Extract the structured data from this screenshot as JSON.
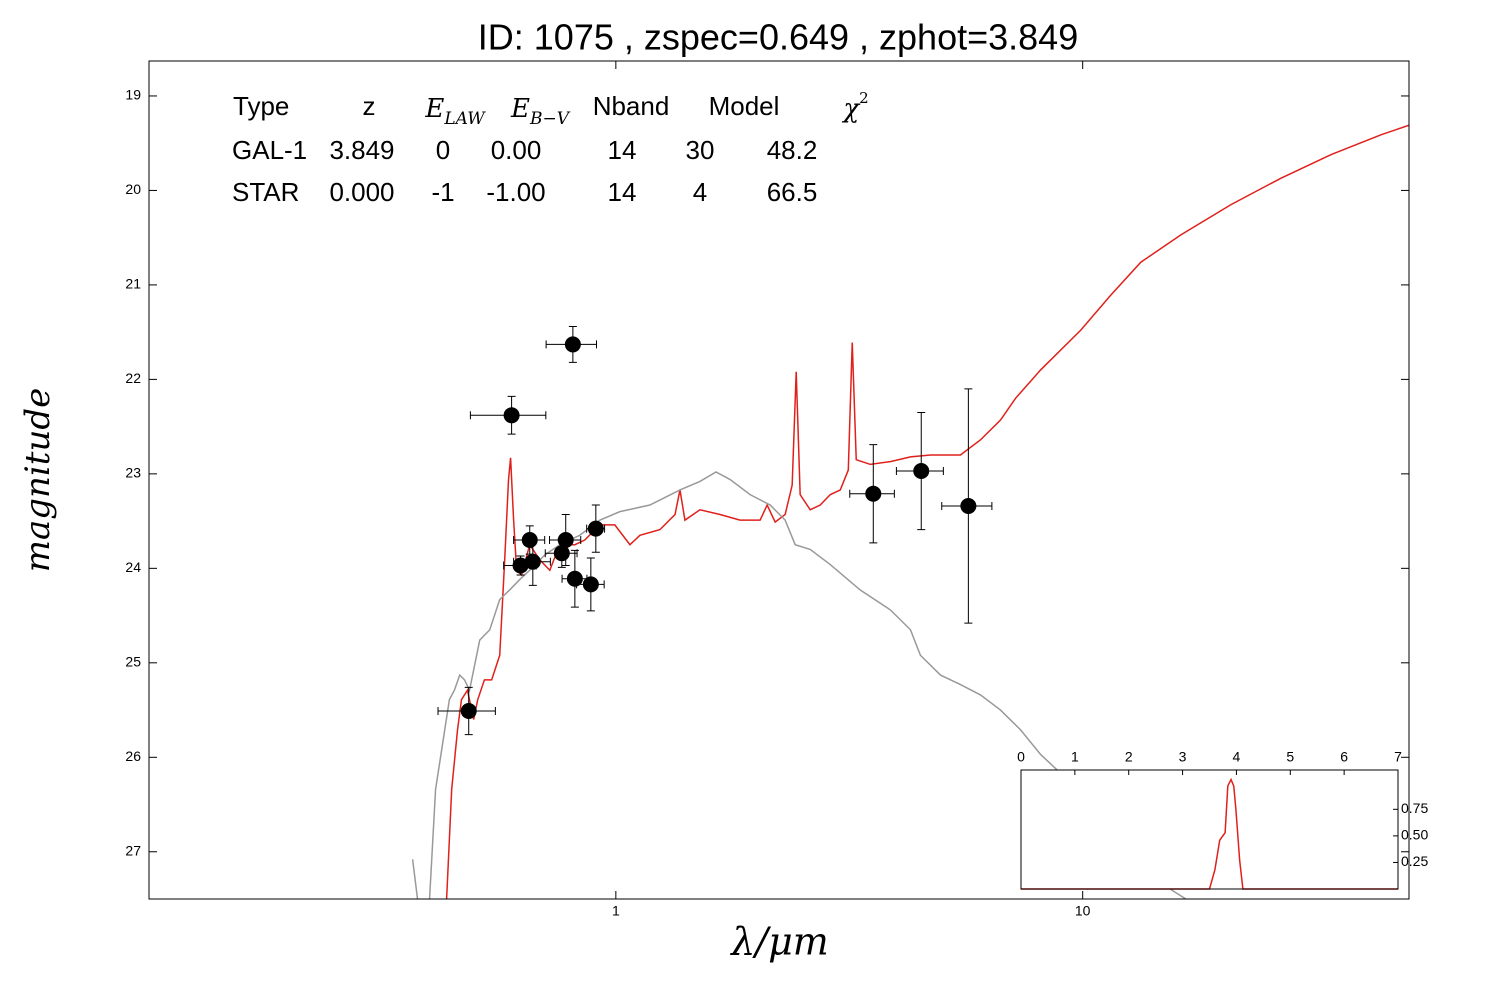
{
  "chart_data": [
    {
      "type": "scatter",
      "title": "ID:  1075  , zspec=0.649 , zphot=3.849",
      "xlabel": "λ/μm",
      "ylabel": "magnitude",
      "xscale": "log",
      "xlim": [
        0.1,
        50
      ],
      "ylim": [
        27.5,
        18.63
      ],
      "xticks": [
        1,
        10
      ],
      "yticks": [
        19,
        20,
        21,
        22,
        23,
        24,
        25,
        26,
        27
      ],
      "points": {
        "color": "#000000",
        "x": [
          0.484,
          0.598,
          0.809,
          0.625,
          0.654,
          0.664,
          0.766,
          0.781,
          0.817,
          0.884,
          0.906,
          3.56,
          4.51,
          5.69
        ],
        "y": [
          25.51,
          22.38,
          21.63,
          23.97,
          23.7,
          23.93,
          23.84,
          23.7,
          24.11,
          24.17,
          23.58,
          23.21,
          22.97,
          23.34
        ],
        "xerr": [
          0.068,
          0.11,
          0.1,
          0.05,
          0.05,
          0.06,
          0.06,
          0.06,
          0.05,
          0.06,
          0.04,
          0.39,
          0.52,
          0.7
        ],
        "yerr": [
          0.25,
          0.2,
          0.19,
          0.1,
          0.15,
          0.25,
          0.15,
          0.27,
          0.3,
          0.28,
          0.25,
          0.52,
          0.62,
          1.24
        ]
      },
      "series": [
        {
          "color": "#e0201b",
          "x": [
            0.434,
            0.445,
            0.458,
            0.467,
            0.481,
            0.496,
            0.506,
            0.523,
            0.542,
            0.564,
            0.578,
            0.589,
            0.595,
            0.604,
            0.613,
            0.628,
            0.654,
            0.687,
            0.722,
            0.758,
            0.817,
            0.858,
            0.924,
            0.995,
            1.072,
            1.126,
            1.243,
            1.339,
            1.372,
            1.406,
            1.514,
            1.672,
            1.845,
            2.037,
            2.109,
            2.194,
            2.305,
            2.386,
            2.434,
            2.482,
            2.608,
            2.74,
            2.879,
            3.025,
            3.147,
            3.209,
            3.273,
            3.509,
            3.873,
            4.276,
            4.719,
            5.472,
            6.041,
            6.668,
            7.181,
            8.126,
            9.901,
            11.48,
            13.32,
            16.23,
            20.78,
            26.6,
            34.06,
            43.61,
            50
          ],
          "y": [
            27.5,
            26.34,
            25.71,
            25.39,
            25.29,
            25.6,
            25.39,
            25.18,
            25.18,
            24.92,
            23.91,
            23.06,
            22.83,
            23.49,
            24.02,
            24.07,
            23.75,
            23.91,
            24.02,
            23.75,
            23.75,
            23.7,
            23.54,
            23.54,
            23.75,
            23.65,
            23.59,
            23.43,
            23.17,
            23.49,
            23.38,
            23.43,
            23.49,
            23.49,
            23.33,
            23.51,
            23.43,
            23.12,
            21.92,
            23.22,
            23.38,
            23.33,
            23.22,
            23.17,
            22.96,
            21.61,
            22.85,
            22.9,
            22.87,
            22.82,
            22.8,
            22.8,
            22.64,
            22.43,
            22.2,
            21.9,
            21.48,
            21.11,
            20.76,
            20.47,
            20.15,
            19.87,
            19.62,
            19.41,
            19.31
          ]
        },
        {
          "color": "#999999",
          "x": [
            0.367,
            0.376,
            null,
            0.399,
            0.411,
            0.43,
            0.44,
            0.451,
            0.463,
            0.474,
            0.486,
            0.511,
            0.537,
            0.564,
            0.592,
            0.622,
            0.654,
            0.704,
            0.758,
            0.837,
            0.924,
            1.02,
            1.183,
            1.372,
            1.514,
            1.639,
            1.757,
            1.939,
            2.141,
            2.305,
            2.422,
            2.608,
            2.879,
            3.339,
            3.873,
            4.276,
            4.491,
            4.959,
            5.472,
            6.041,
            6.668,
            7.362,
            8.126,
            8.796,
            15.45,
            16.63
          ],
          "y": [
            27.08,
            27.5,
            null,
            27.5,
            26.34,
            25.71,
            25.39,
            25.29,
            25.13,
            25.18,
            25.29,
            24.76,
            24.65,
            24.33,
            24.23,
            24.12,
            24.02,
            23.86,
            23.75,
            23.65,
            23.49,
            23.4,
            23.33,
            23.17,
            23.08,
            22.98,
            23.06,
            23.22,
            23.33,
            23.49,
            23.75,
            23.8,
            23.96,
            24.23,
            24.44,
            24.65,
            24.92,
            25.13,
            25.23,
            25.34,
            25.5,
            25.71,
            25.97,
            26.13,
            27.4,
            27.5
          ]
        }
      ],
      "table": {
        "header": [
          "Type",
          "z",
          {
            "base": "E",
            "sub": "LAW"
          },
          {
            "base": "E",
            "sub": "B−V"
          },
          "Nband",
          "Model",
          {
            "base": "χ",
            "sup": "2"
          }
        ],
        "rows": [
          {
            "color": "#e8241c",
            "cells": [
              "GAL-1",
              "3.849",
              "0",
              "0.00",
              "14",
              "30",
              "48.2"
            ]
          },
          {
            "color": "#9a9a9a",
            "cells": [
              "STAR",
              "0.000",
              "-1",
              "-1.00",
              "14",
              "4",
              "66.5"
            ]
          }
        ]
      }
    },
    {
      "type": "line",
      "color": "#e0201b",
      "xlim": [
        0,
        7
      ],
      "ylim": [
        0,
        1.12
      ],
      "xticks": [
        0,
        1,
        2,
        3,
        4,
        5,
        6,
        7
      ],
      "yticks": [
        0.25,
        {
          "value": 0.5,
          "label": "0.50"
        },
        0.75
      ],
      "x": [
        0,
        3.5,
        3.6,
        3.69,
        3.79,
        3.84,
        3.9,
        3.95,
        3.99,
        4.06,
        4.12,
        7
      ],
      "y": [
        0,
        0,
        0.18,
        0.46,
        0.53,
        0.97,
        1.03,
        0.97,
        0.75,
        0.27,
        0,
        0
      ]
    }
  ]
}
